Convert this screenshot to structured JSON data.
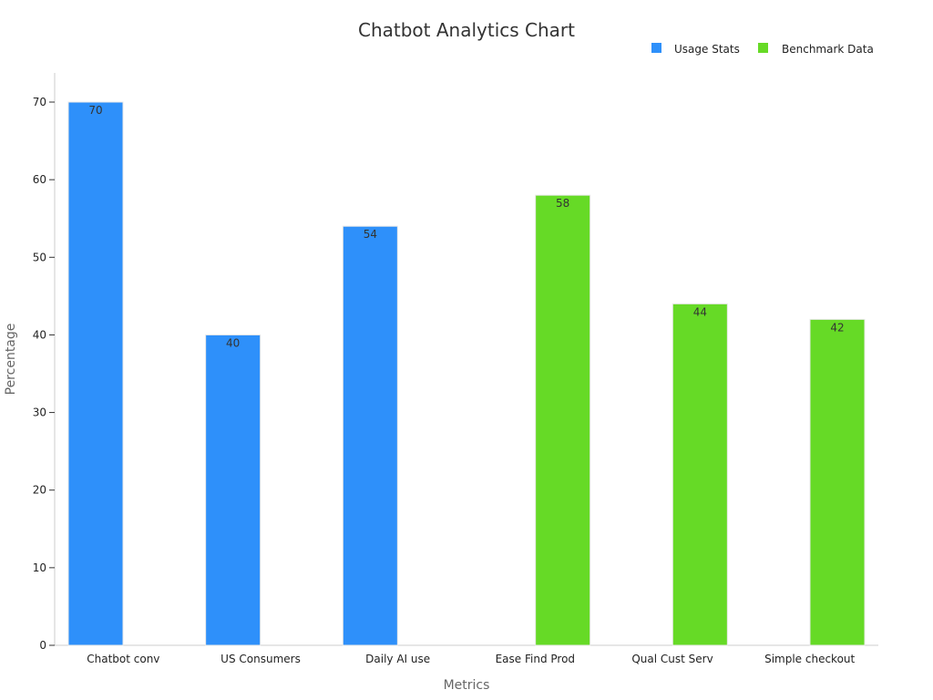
{
  "chart_data": {
    "type": "bar",
    "title": "Chatbot Analytics Chart",
    "xlabel": "Metrics",
    "ylabel": "Percentage",
    "ylim": [
      0,
      70
    ],
    "yticks": [
      0,
      10,
      20,
      30,
      40,
      50,
      60,
      70
    ],
    "grid": false,
    "legend_position": "top-right",
    "categories": [
      "Chatbot conv",
      "US Consumers",
      "Daily AI use",
      "Ease Find Prod",
      "Qual Cust Serv",
      "Simple checkout"
    ],
    "series": [
      {
        "name": "Usage Stats",
        "color": "#2e90fa",
        "values": [
          70,
          40,
          54,
          null,
          null,
          null
        ]
      },
      {
        "name": "Benchmark Data",
        "color": "#66da26",
        "values": [
          null,
          null,
          null,
          58,
          44,
          42
        ]
      }
    ]
  }
}
